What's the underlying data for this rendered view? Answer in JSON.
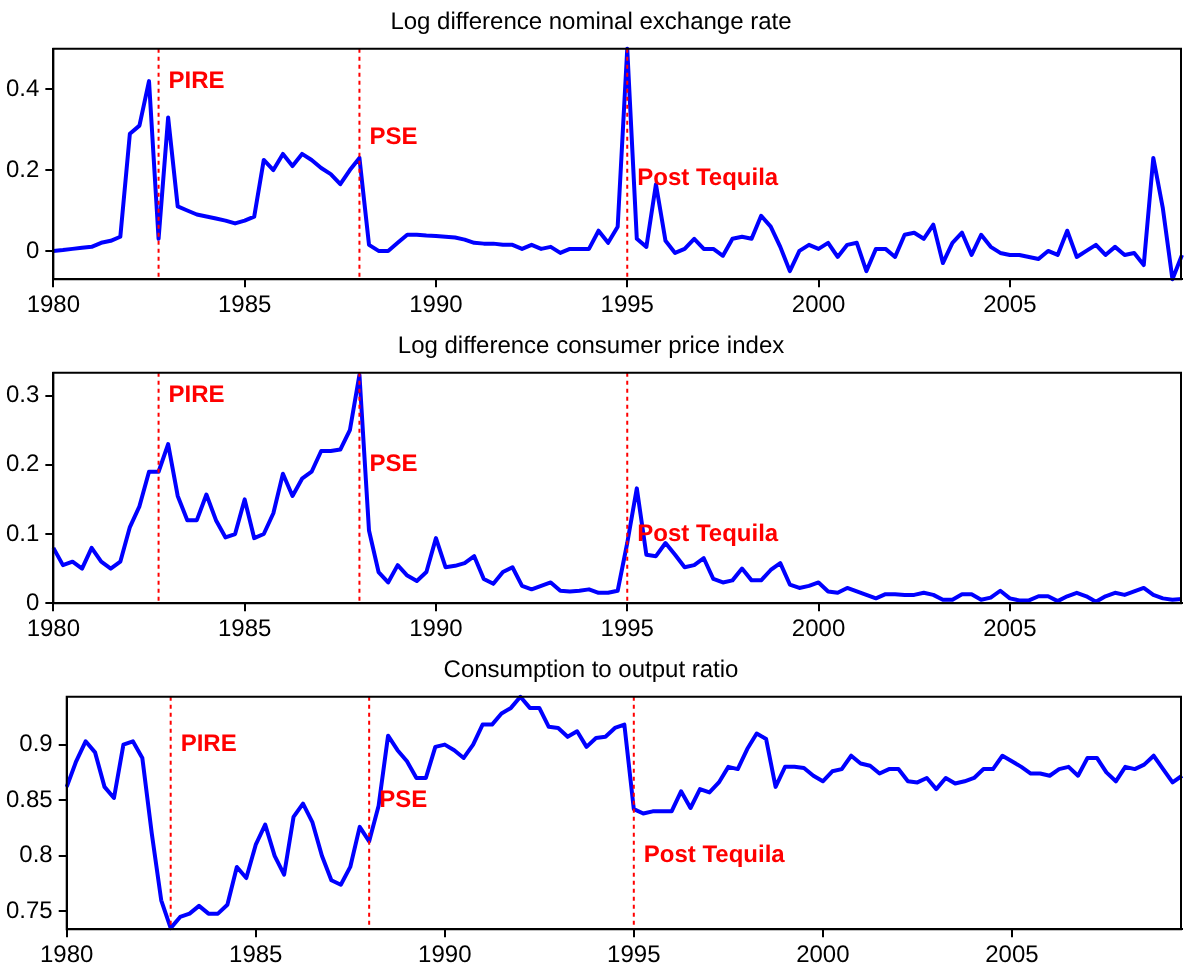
{
  "chart_data": [
    {
      "type": "line",
      "title": "Log difference nominal exchange rate",
      "xlim": [
        1980,
        2009.5
      ],
      "xticks": [
        1980,
        1985,
        1990,
        1995,
        2000,
        2005
      ],
      "ylim": [
        -0.07,
        0.5
      ],
      "yticks": [
        0,
        0.2,
        0.4
      ],
      "grid": false,
      "legend": false,
      "marker": "none",
      "line_style": "solid",
      "ref_lines": [
        {
          "axis": "x",
          "value": 1982.75,
          "color": "#ff0000",
          "line_style": "dotted"
        },
        {
          "axis": "x",
          "value": 1988,
          "color": "#ff0000",
          "line_style": "dotted"
        },
        {
          "axis": "x",
          "value": 1995,
          "color": "#ff0000",
          "line_style": "dotted"
        }
      ],
      "annotations": [
        {
          "text": "PIRE",
          "x": 1982.75,
          "y": 0.42
        },
        {
          "text": "PSE",
          "x": 1988,
          "y": 0.28
        },
        {
          "text": "Post Tequila",
          "x": 1995,
          "y": 0.18
        }
      ],
      "x": [
        1980,
        1980.25,
        1980.5,
        1980.75,
        1981,
        1981.25,
        1981.5,
        1981.75,
        1982,
        1982.25,
        1982.5,
        1982.75,
        1983,
        1983.25,
        1983.5,
        1983.75,
        1984,
        1984.25,
        1984.5,
        1984.75,
        1985,
        1985.25,
        1985.5,
        1985.75,
        1986,
        1986.25,
        1986.5,
        1986.75,
        1987,
        1987.25,
        1987.5,
        1987.75,
        1988,
        1988.25,
        1988.5,
        1988.75,
        1989,
        1989.25,
        1989.5,
        1989.75,
        1990,
        1990.25,
        1990.5,
        1990.75,
        1991,
        1991.25,
        1991.5,
        1991.75,
        1992,
        1992.25,
        1992.5,
        1992.75,
        1993,
        1993.25,
        1993.5,
        1993.75,
        1994,
        1994.25,
        1994.5,
        1994.75,
        1995,
        1995.25,
        1995.5,
        1995.75,
        1996,
        1996.25,
        1996.5,
        1996.75,
        1997,
        1997.25,
        1997.5,
        1997.75,
        1998,
        1998.25,
        1998.5,
        1998.75,
        1999,
        1999.25,
        1999.5,
        1999.75,
        2000,
        2000.25,
        2000.5,
        2000.75,
        2001,
        2001.25,
        2001.5,
        2001.75,
        2002,
        2002.25,
        2002.5,
        2002.75,
        2003,
        2003.25,
        2003.5,
        2003.75,
        2004,
        2004.25,
        2004.5,
        2004.75,
        2005,
        2005.25,
        2005.5,
        2005.75,
        2006,
        2006.25,
        2006.5,
        2006.75,
        2007,
        2007.25,
        2007.5,
        2007.75,
        2008,
        2008.25,
        2008.5,
        2008.75,
        2009,
        2009.25,
        2009.5
      ],
      "series": [
        {
          "color": "#0000ff",
          "values": [
            0,
            0.002,
            0.005,
            0.008,
            0.01,
            0.02,
            0.025,
            0.035,
            0.29,
            0.31,
            0.42,
            0.03,
            0.33,
            0.11,
            0.1,
            0.09,
            0.085,
            0.08,
            0.075,
            0.068,
            0.075,
            0.085,
            0.225,
            0.2,
            0.24,
            0.21,
            0.24,
            0.225,
            0.205,
            0.19,
            0.165,
            0.2,
            0.23,
            0.015,
            0,
            0,
            0.02,
            0.04,
            0.04,
            0.038,
            0.037,
            0.035,
            0.033,
            0.028,
            0.02,
            0.018,
            0.018,
            0.015,
            0.015,
            0.005,
            0.015,
            0.005,
            0.01,
            -0.005,
            0.005,
            0.005,
            0.005,
            0.05,
            0.02,
            0.06,
            0.5,
            0.03,
            0.01,
            0.165,
            0.025,
            -0.005,
            0.005,
            0.03,
            0.005,
            0.005,
            -0.012,
            0.03,
            0.035,
            0.03,
            0.087,
            0.06,
            0.01,
            -0.05,
            0,
            0.015,
            0.005,
            0.02,
            -0.015,
            0.015,
            0.02,
            -0.05,
            0.005,
            0.005,
            -0.015,
            0.04,
            0.045,
            0.03,
            0.065,
            -0.03,
            0.02,
            0.045,
            -0.01,
            0.04,
            0.01,
            -0.005,
            -0.01,
            -0.01,
            -0.015,
            -0.02,
            0,
            -0.01,
            0.05,
            -0.015,
            0,
            0.015,
            -0.01,
            0.01,
            -0.01,
            -0.005,
            -0.035,
            0.23,
            0.105,
            -0.07,
            -0.01
          ]
        }
      ]
    },
    {
      "type": "line",
      "title": "Log difference consumer price index",
      "xlim": [
        1980,
        2009.5
      ],
      "xticks": [
        1980,
        1985,
        1990,
        1995,
        2000,
        2005
      ],
      "ylim": [
        0,
        0.333
      ],
      "yticks": [
        0,
        0.1,
        0.2,
        0.3
      ],
      "grid": false,
      "legend": false,
      "marker": "none",
      "line_style": "solid",
      "ref_lines": [
        {
          "axis": "x",
          "value": 1982.75,
          "color": "#ff0000",
          "line_style": "dotted"
        },
        {
          "axis": "x",
          "value": 1988,
          "color": "#ff0000",
          "line_style": "dotted"
        },
        {
          "axis": "x",
          "value": 1995,
          "color": "#ff0000",
          "line_style": "dotted"
        }
      ],
      "annotations": [
        {
          "text": "PIRE",
          "x": 1982.75,
          "y": 0.3
        },
        {
          "text": "PSE",
          "x": 1988,
          "y": 0.2
        },
        {
          "text": "Post Tequila",
          "x": 1995,
          "y": 0.1
        }
      ],
      "x": [
        1980,
        1980.25,
        1980.5,
        1980.75,
        1981,
        1981.25,
        1981.5,
        1981.75,
        1982,
        1982.25,
        1982.5,
        1982.75,
        1983,
        1983.25,
        1983.5,
        1983.75,
        1984,
        1984.25,
        1984.5,
        1984.75,
        1985,
        1985.25,
        1985.5,
        1985.75,
        1986,
        1986.25,
        1986.5,
        1986.75,
        1987,
        1987.25,
        1987.5,
        1987.75,
        1988,
        1988.25,
        1988.5,
        1988.75,
        1989,
        1989.25,
        1989.5,
        1989.75,
        1990,
        1990.25,
        1990.5,
        1990.75,
        1991,
        1991.25,
        1991.5,
        1991.75,
        1992,
        1992.25,
        1992.5,
        1992.75,
        1993,
        1993.25,
        1993.5,
        1993.75,
        1994,
        1994.25,
        1994.5,
        1994.75,
        1995,
        1995.25,
        1995.5,
        1995.75,
        1996,
        1996.25,
        1996.5,
        1996.75,
        1997,
        1997.25,
        1997.5,
        1997.75,
        1998,
        1998.25,
        1998.5,
        1998.75,
        1999,
        1999.25,
        1999.5,
        1999.75,
        2000,
        2000.25,
        2000.5,
        2000.75,
        2001,
        2001.25,
        2001.5,
        2001.75,
        2002,
        2002.25,
        2002.5,
        2002.75,
        2003,
        2003.25,
        2003.5,
        2003.75,
        2004,
        2004.25,
        2004.5,
        2004.75,
        2005,
        2005.25,
        2005.5,
        2005.75,
        2006,
        2006.25,
        2006.5,
        2006.75,
        2007,
        2007.25,
        2007.5,
        2007.75,
        2008,
        2008.25,
        2008.5,
        2008.75,
        2009,
        2009.25,
        2009.5
      ],
      "series": [
        {
          "color": "#0000ff",
          "values": [
            0.08,
            0.055,
            0.06,
            0.05,
            0.08,
            0.06,
            0.05,
            0.06,
            0.11,
            0.14,
            0.19,
            0.19,
            0.23,
            0.155,
            0.12,
            0.12,
            0.157,
            0.12,
            0.095,
            0.1,
            0.15,
            0.094,
            0.1,
            0.13,
            0.187,
            0.155,
            0.18,
            0.19,
            0.22,
            0.22,
            0.222,
            0.25,
            0.33,
            0.105,
            0.045,
            0.03,
            0.055,
            0.04,
            0.032,
            0.045,
            0.094,
            0.052,
            0.054,
            0.058,
            0.068,
            0.035,
            0.028,
            0.045,
            0.052,
            0.025,
            0.02,
            0.025,
            0.03,
            0.018,
            0.017,
            0.018,
            0.02,
            0.015,
            0.015,
            0.018,
            0.087,
            0.166,
            0.07,
            0.068,
            0.087,
            0.07,
            0.052,
            0.055,
            0.065,
            0.035,
            0.03,
            0.033,
            0.05,
            0.033,
            0.033,
            0.048,
            0.058,
            0.027,
            0.022,
            0.025,
            0.03,
            0.017,
            0.015,
            0.022,
            0.017,
            0.012,
            0.007,
            0.013,
            0.013,
            0.012,
            0.012,
            0.015,
            0.012,
            0.005,
            0.005,
            0.013,
            0.013,
            0.005,
            0.008,
            0.018,
            0.007,
            0.004,
            0.004,
            0.01,
            0.01,
            0.003,
            0.01,
            0.015,
            0.01,
            0.002,
            0.01,
            0.015,
            0.012,
            0.017,
            0.022,
            0.012,
            0.007,
            0.005,
            0.006
          ]
        }
      ]
    },
    {
      "type": "line",
      "title": "Consumption to output ratio",
      "xlim": [
        1980,
        2009.5
      ],
      "xticks": [
        1980,
        1985,
        1990,
        1995,
        2000,
        2005
      ],
      "ylim": [
        0.734,
        0.943
      ],
      "yticks": [
        0.75,
        0.8,
        0.85,
        0.9
      ],
      "grid": false,
      "legend": false,
      "marker": "none",
      "line_style": "solid",
      "ref_lines": [
        {
          "axis": "x",
          "value": 1982.75,
          "color": "#ff0000",
          "line_style": "dotted"
        },
        {
          "axis": "x",
          "value": 1988,
          "color": "#ff0000",
          "line_style": "dotted"
        },
        {
          "axis": "x",
          "value": 1995,
          "color": "#ff0000",
          "line_style": "dotted"
        }
      ],
      "annotations": [
        {
          "text": "PIRE",
          "x": 1982.75,
          "y": 0.9
        },
        {
          "text": "PSE",
          "x": 1988,
          "y": 0.85
        },
        {
          "text": "Post Tequila",
          "x": 1995,
          "y": 0.8
        }
      ],
      "x": [
        1980,
        1980.25,
        1980.5,
        1980.75,
        1981,
        1981.25,
        1981.5,
        1981.75,
        1982,
        1982.25,
        1982.5,
        1982.75,
        1983,
        1983.25,
        1983.5,
        1983.75,
        1984,
        1984.25,
        1984.5,
        1984.75,
        1985,
        1985.25,
        1985.5,
        1985.75,
        1986,
        1986.25,
        1986.5,
        1986.75,
        1987,
        1987.25,
        1987.5,
        1987.75,
        1988,
        1988.25,
        1988.5,
        1988.75,
        1989,
        1989.25,
        1989.5,
        1989.75,
        1990,
        1990.25,
        1990.5,
        1990.75,
        1991,
        1991.25,
        1991.5,
        1991.75,
        1992,
        1992.25,
        1992.5,
        1992.75,
        1993,
        1993.25,
        1993.5,
        1993.75,
        1994,
        1994.25,
        1994.5,
        1994.75,
        1995,
        1995.25,
        1995.5,
        1995.75,
        1996,
        1996.25,
        1996.5,
        1996.75,
        1997,
        1997.25,
        1997.5,
        1997.75,
        1998,
        1998.25,
        1998.5,
        1998.75,
        1999,
        1999.25,
        1999.5,
        1999.75,
        2000,
        2000.25,
        2000.5,
        2000.75,
        2001,
        2001.25,
        2001.5,
        2001.75,
        2002,
        2002.25,
        2002.5,
        2002.75,
        2003,
        2003.25,
        2003.5,
        2003.75,
        2004,
        2004.25,
        2004.5,
        2004.75,
        2005,
        2005.25,
        2005.5,
        2005.75,
        2006,
        2006.25,
        2006.5,
        2006.75,
        2007,
        2007.25,
        2007.5,
        2007.75,
        2008,
        2008.25,
        2008.5,
        2008.75,
        2009,
        2009.25,
        2009.5
      ],
      "series": [
        {
          "color": "#0000ff",
          "values": [
            0.862,
            0.885,
            0.903,
            0.893,
            0.862,
            0.852,
            0.9,
            0.903,
            0.888,
            0.82,
            0.76,
            0.735,
            0.745,
            0.748,
            0.755,
            0.748,
            0.748,
            0.756,
            0.79,
            0.78,
            0.81,
            0.828,
            0.8,
            0.783,
            0.835,
            0.847,
            0.83,
            0.8,
            0.778,
            0.774,
            0.79,
            0.826,
            0.813,
            0.845,
            0.908,
            0.895,
            0.885,
            0.87,
            0.87,
            0.898,
            0.9,
            0.895,
            0.888,
            0.9,
            0.918,
            0.918,
            0.928,
            0.933,
            0.943,
            0.933,
            0.933,
            0.916,
            0.915,
            0.907,
            0.912,
            0.898,
            0.906,
            0.907,
            0.915,
            0.918,
            0.842,
            0.838,
            0.84,
            0.84,
            0.84,
            0.858,
            0.843,
            0.86,
            0.857,
            0.866,
            0.88,
            0.878,
            0.896,
            0.91,
            0.905,
            0.862,
            0.88,
            0.88,
            0.879,
            0.872,
            0.867,
            0.876,
            0.878,
            0.89,
            0.883,
            0.881,
            0.874,
            0.878,
            0.878,
            0.867,
            0.866,
            0.87,
            0.86,
            0.87,
            0.865,
            0.867,
            0.87,
            0.878,
            0.878,
            0.89,
            0.885,
            0.88,
            0.874,
            0.874,
            0.872,
            0.878,
            0.88,
            0.872,
            0.888,
            0.888,
            0.875,
            0.867,
            0.88,
            0.878,
            0.882,
            0.89,
            0.878,
            0.866,
            0.872
          ]
        }
      ]
    }
  ]
}
